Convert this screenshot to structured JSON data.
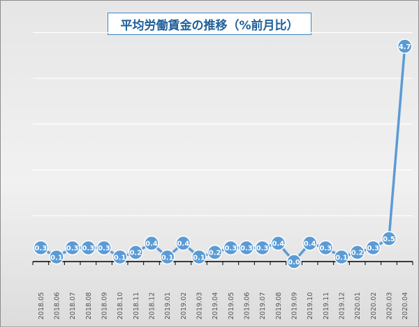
{
  "chart_data": {
    "type": "line",
    "title": "平均労働賃金の推移（%前月比）",
    "xlabel": "",
    "ylabel": "",
    "categories": [
      "2018.05",
      "2018.06",
      "2018.07",
      "2018.08",
      "2018.09",
      "2018.10",
      "2018.11",
      "2018.12",
      "2019.01",
      "2019.02",
      "2019.03",
      "2019.04",
      "2019.05",
      "2019.06",
      "2019.07",
      "2019.08",
      "2019.09",
      "2019.10",
      "2019.11",
      "2019.12",
      "2020.01",
      "2020.02",
      "2020.03",
      "2020.04"
    ],
    "values": [
      0.3,
      0.1,
      0.3,
      0.3,
      0.3,
      0.1,
      0.2,
      0.4,
      0.1,
      0.4,
      0.1,
      0.2,
      0.3,
      0.3,
      0.3,
      0.4,
      0.0,
      0.4,
      0.3,
      0.1,
      0.2,
      0.3,
      0.5,
      4.7
    ],
    "ylim": [
      -0.1,
      5.5
    ],
    "grid": true,
    "legend": "none",
    "series_color": "#5b9bd5",
    "marker_fill": "#5b9bd5",
    "label_color": "#ffffff"
  }
}
